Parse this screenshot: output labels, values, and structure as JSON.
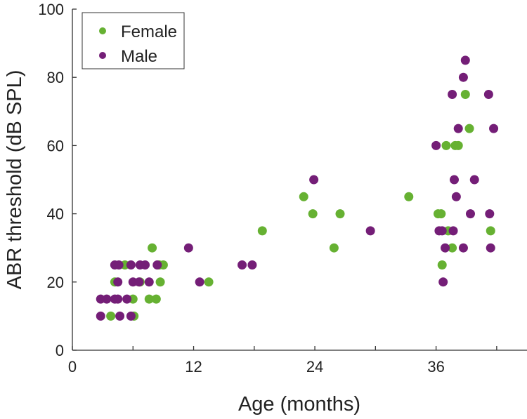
{
  "chart_data": {
    "type": "scatter",
    "title": "",
    "xlabel": "Age (months)",
    "ylabel": "ABR threshold (dB SPL)",
    "xlim": [
      0,
      45
    ],
    "ylim": [
      0,
      100
    ],
    "xticks": [
      0,
      6,
      12,
      18,
      24,
      30,
      36,
      42
    ],
    "xtick_labels": [
      "0",
      "",
      "12",
      "",
      "24",
      "",
      "36",
      ""
    ],
    "yticks": [
      0,
      20,
      40,
      60,
      80,
      100
    ],
    "ytick_labels": [
      "0",
      "20",
      "40",
      "60",
      "80",
      "100"
    ],
    "grid": false,
    "legend_position": "top-left",
    "series": [
      {
        "name": "Female",
        "color": "#66b132",
        "points": [
          [
            5.2,
            25
          ],
          [
            8.6,
            25
          ],
          [
            9.0,
            25
          ],
          [
            4.2,
            20
          ],
          [
            6.7,
            20
          ],
          [
            8.7,
            20
          ],
          [
            6.0,
            15
          ],
          [
            7.6,
            15
          ],
          [
            8.3,
            15
          ],
          [
            3.8,
            10
          ],
          [
            6.1,
            10
          ],
          [
            7.9,
            30
          ],
          [
            13.5,
            20
          ],
          [
            18.8,
            35
          ],
          [
            22.9,
            45
          ],
          [
            23.8,
            40
          ],
          [
            26.5,
            40
          ],
          [
            25.9,
            30
          ],
          [
            33.3,
            45
          ],
          [
            38.9,
            75
          ],
          [
            39.3,
            65
          ],
          [
            37.0,
            60
          ],
          [
            37.9,
            60
          ],
          [
            38.2,
            60
          ],
          [
            36.2,
            40
          ],
          [
            36.5,
            40
          ],
          [
            37.2,
            35
          ],
          [
            41.4,
            35
          ],
          [
            37.6,
            30
          ],
          [
            36.6,
            25
          ]
        ]
      },
      {
        "name": "Male",
        "color": "#741e77",
        "points": [
          [
            4.2,
            25
          ],
          [
            4.6,
            25
          ],
          [
            5.8,
            25
          ],
          [
            6.7,
            25
          ],
          [
            7.2,
            25
          ],
          [
            8.4,
            25
          ],
          [
            4.5,
            20
          ],
          [
            6.0,
            20
          ],
          [
            6.6,
            20
          ],
          [
            7.6,
            20
          ],
          [
            2.8,
            15
          ],
          [
            3.4,
            15
          ],
          [
            4.2,
            15
          ],
          [
            4.5,
            15
          ],
          [
            5.4,
            15
          ],
          [
            2.8,
            10
          ],
          [
            4.7,
            10
          ],
          [
            5.8,
            10
          ],
          [
            11.5,
            30
          ],
          [
            12.6,
            20
          ],
          [
            16.8,
            25
          ],
          [
            17.8,
            25
          ],
          [
            23.9,
            50
          ],
          [
            29.5,
            35
          ],
          [
            38.9,
            85
          ],
          [
            38.7,
            80
          ],
          [
            37.6,
            75
          ],
          [
            41.2,
            75
          ],
          [
            38.2,
            65
          ],
          [
            41.7,
            65
          ],
          [
            36.0,
            60
          ],
          [
            37.8,
            50
          ],
          [
            39.8,
            50
          ],
          [
            38.0,
            45
          ],
          [
            39.4,
            40
          ],
          [
            41.3,
            40
          ],
          [
            36.3,
            35
          ],
          [
            36.6,
            35
          ],
          [
            37.7,
            35
          ],
          [
            36.9,
            30
          ],
          [
            38.7,
            30
          ],
          [
            41.4,
            30
          ],
          [
            36.7,
            20
          ]
        ]
      }
    ]
  }
}
